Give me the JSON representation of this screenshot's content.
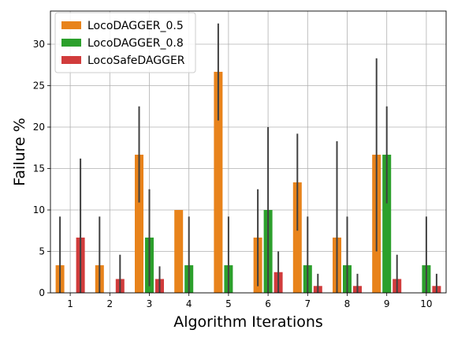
{
  "chart_data": {
    "type": "bar",
    "title": "",
    "xlabel": "Algorithm Iterations",
    "ylabel": "Failure %",
    "categories": [
      "1",
      "2",
      "3",
      "4",
      "5",
      "6",
      "7",
      "8",
      "9",
      "10"
    ],
    "ylim": [
      0,
      34
    ],
    "yticks": [
      0,
      5,
      10,
      15,
      20,
      25,
      30
    ],
    "grid": true,
    "legend_position": "top-left",
    "series": [
      {
        "name": "LocoDAGGER_0.5",
        "color": "#e8831b",
        "values": [
          3.33,
          3.33,
          16.67,
          10.0,
          26.67,
          6.67,
          13.33,
          6.67,
          16.67,
          null
        ],
        "error_low": [
          0,
          0,
          10.9,
          10.0,
          20.8,
          0.8,
          7.5,
          0,
          5.0,
          null
        ],
        "error_high": [
          9.2,
          9.2,
          22.5,
          10.0,
          32.5,
          12.5,
          19.2,
          18.3,
          28.3,
          null
        ]
      },
      {
        "name": "LocoDAGGER_0.8",
        "color": "#2ca02c",
        "values": [
          null,
          null,
          6.67,
          3.33,
          3.33,
          10.0,
          3.33,
          3.33,
          16.67,
          3.33
        ],
        "error_low": [
          null,
          null,
          0.8,
          0,
          0,
          0,
          0,
          0,
          10.8,
          0
        ],
        "error_high": [
          null,
          null,
          12.5,
          9.2,
          9.2,
          20.0,
          9.2,
          9.2,
          22.5,
          9.2
        ]
      },
      {
        "name": "LocoSafeDAGGER",
        "color": "#d13c3c",
        "values": [
          6.67,
          1.67,
          1.67,
          null,
          null,
          2.5,
          0.83,
          0.83,
          1.67,
          0.83
        ],
        "error_low": [
          0,
          0,
          0,
          null,
          null,
          0,
          0,
          0,
          0,
          0
        ],
        "error_high": [
          16.2,
          4.6,
          3.2,
          null,
          null,
          5.0,
          2.3,
          2.3,
          4.6,
          2.3
        ]
      }
    ]
  }
}
